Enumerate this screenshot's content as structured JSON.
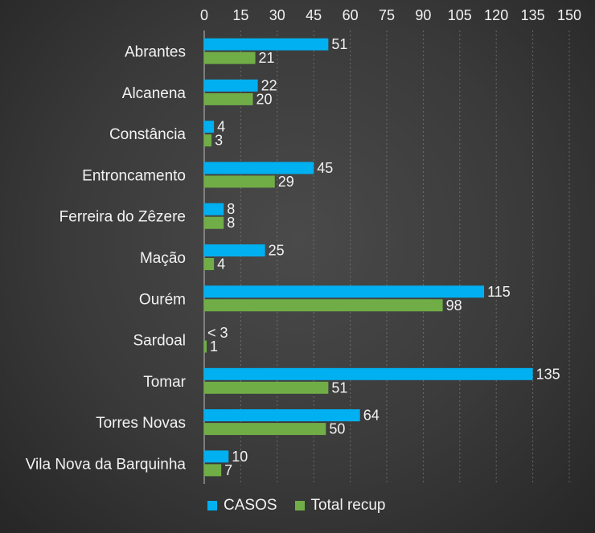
{
  "chart_data": {
    "type": "bar",
    "orientation": "horizontal",
    "categories": [
      "Abrantes",
      "Alcanena",
      "Constância",
      "Entroncamento",
      "Ferreira do Zêzere",
      "Mação",
      "Ourém",
      "Sardoal",
      "Tomar",
      "Torres Novas",
      "Vila Nova da Barquinha"
    ],
    "series": [
      {
        "name": "CASOS",
        "color": "#00b0f0",
        "values": [
          51,
          22,
          4,
          45,
          8,
          25,
          115,
          0,
          135,
          64,
          10
        ],
        "labels": [
          "51",
          "22",
          "4",
          "45",
          "8",
          "25",
          "115",
          "< 3",
          "135",
          "64",
          "10"
        ]
      },
      {
        "name": "Total recup",
        "color": "#70ad47",
        "values": [
          21,
          20,
          3,
          29,
          8,
          4,
          98,
          1,
          51,
          50,
          7
        ],
        "labels": [
          "21",
          "20",
          "3",
          "29",
          "8",
          "4",
          "98",
          "1",
          "51",
          "50",
          "7"
        ]
      }
    ],
    "xlim": [
      0,
      150
    ],
    "xticks": [
      "0",
      "15",
      "30",
      "45",
      "60",
      "75",
      "90",
      "105",
      "120",
      "135",
      "150"
    ],
    "xaxis_position": "top",
    "grid": true,
    "legend_position": "bottom"
  }
}
